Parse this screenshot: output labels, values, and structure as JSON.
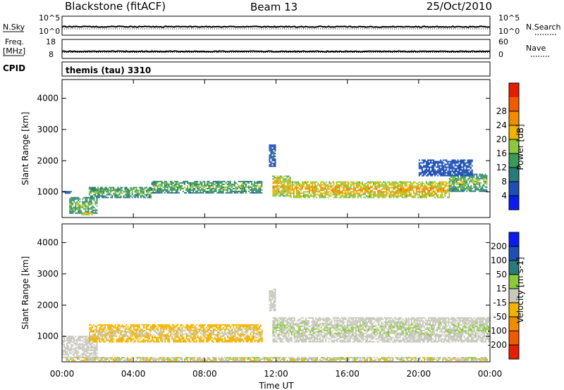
{
  "header": {
    "station": "Blackstone (fitACF)",
    "beam": "Beam 13",
    "date": "25/Oct/2010"
  },
  "nsky_panel": {
    "left_label": "N.Sky",
    "right_label": "N.Search",
    "left_ticks": [
      "10^5",
      "10^0"
    ],
    "right_ticks": [
      "10^5",
      "10^0"
    ]
  },
  "freq_panel": {
    "left_label_line1": "Freq.",
    "left_label_line2": "[MHz]",
    "right_label": "Nave",
    "left_ticks": [
      "18",
      "8"
    ],
    "right_ticks": [
      "60",
      "0"
    ]
  },
  "cpid": {
    "label": "CPID",
    "value": "themis (tau) 3310"
  },
  "colors": {
    "power": [
      "#0a1cf0",
      "#1e50b4",
      "#2a7a7a",
      "#3a9a5a",
      "#8cc83c",
      "#f0b400",
      "#f08c00",
      "#f05a00",
      "#e61e00"
    ],
    "velocity": [
      "#e61e00",
      "#f05a00",
      "#f08c00",
      "#f0b400",
      "#c8c8be",
      "#8cc83c",
      "#2a7a7a",
      "#1e50b4",
      "#0a1cf0"
    ]
  },
  "chart_data": [
    {
      "type": "heatmap",
      "name": "power-panel",
      "ylabel": "Slant Range [km]",
      "ylim": [
        180,
        4600
      ],
      "yticks": [
        "1000",
        "2000",
        "3000",
        "4000"
      ],
      "colorbar_label": "Power [dB]",
      "colorbar_ticks": [
        "4",
        "8",
        "12",
        "16",
        "20",
        "24",
        "28"
      ],
      "colorbar_range": [
        0,
        32
      ],
      "bands": [
        {
          "x": [
            0.0,
            0.55
          ],
          "y": [
            940,
            1000
          ],
          "v": [
            4,
            10
          ]
        },
        {
          "x": [
            0.4,
            2.0
          ],
          "y": [
            300,
            800
          ],
          "v": [
            6,
            22
          ]
        },
        {
          "x": [
            1.0,
            1.8
          ],
          "y": [
            250,
            330
          ],
          "v": [
            14,
            24
          ]
        },
        {
          "x": [
            1.5,
            5.0
          ],
          "y": [
            800,
            1150
          ],
          "v": [
            4,
            22
          ]
        },
        {
          "x": [
            5.0,
            11.2
          ],
          "y": [
            950,
            1350
          ],
          "v": [
            4,
            22
          ]
        },
        {
          "x": [
            11.8,
            12.8
          ],
          "y": [
            850,
            1500
          ],
          "v": [
            10,
            30
          ]
        },
        {
          "x": [
            12.8,
            21.7
          ],
          "y": [
            800,
            1300
          ],
          "v": [
            12,
            30
          ]
        },
        {
          "x": [
            21.7,
            23.8
          ],
          "y": [
            1000,
            1550
          ],
          "v": [
            4,
            24
          ]
        },
        {
          "x": [
            20.0,
            23.0
          ],
          "y": [
            1500,
            2000
          ],
          "v": [
            4,
            8
          ]
        },
        {
          "x": [
            11.6,
            12.0
          ],
          "y": [
            1800,
            2500
          ],
          "v": [
            4,
            10
          ]
        }
      ]
    },
    {
      "type": "heatmap",
      "name": "velocity-panel",
      "ylabel": "Slant Range [km]",
      "ylim": [
        180,
        4600
      ],
      "yticks": [
        "1000",
        "2000",
        "3000",
        "4000"
      ],
      "xlabel": "Time UT",
      "xticks": [
        "00:00",
        "04:00",
        "08:00",
        "12:00",
        "16:00",
        "20:00",
        "00:00"
      ],
      "xlim_hours": [
        0,
        24
      ],
      "colorbar_label": "Velocity [m s-1]",
      "colorbar_ticks": [
        "-200",
        "-100",
        "-50",
        "-15",
        "15",
        "50",
        "100",
        "200"
      ],
      "bands": [
        {
          "x": [
            0.0,
            2.0
          ],
          "y": [
            300,
            1000
          ],
          "v": [
            -15,
            15
          ]
        },
        {
          "x": [
            1.5,
            11.2
          ],
          "y": [
            800,
            1350
          ],
          "v": [
            -60,
            15
          ]
        },
        {
          "x": [
            11.8,
            24.0
          ],
          "y": [
            800,
            1600
          ],
          "v": [
            -15,
            30
          ]
        },
        {
          "x": [
            0.2,
            23.8
          ],
          "y": [
            200,
            320
          ],
          "v": [
            -50,
            50
          ]
        },
        {
          "x": [
            11.6,
            12.0
          ],
          "y": [
            1800,
            2500
          ],
          "v": [
            -15,
            15
          ]
        }
      ]
    }
  ]
}
